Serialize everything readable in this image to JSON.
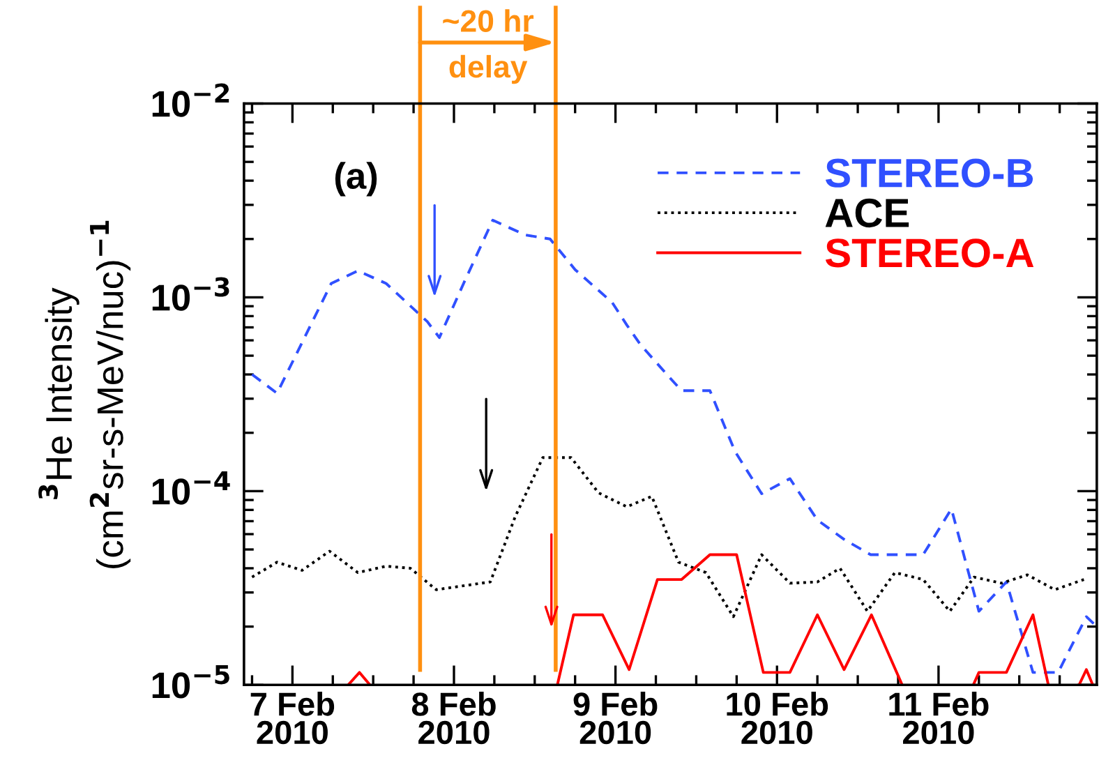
{
  "chart_data": {
    "type": "line",
    "ylabel": "$^{3}$He Intensity\n(cm$^{2}$sr-s-MeV/nuc)$^{−1}$",
    "log": "y",
    "ylim": [
      1e-05,
      0.01
    ],
    "yticks": [
      {
        "value": 1e-05,
        "label": "10$^{−5}$"
      },
      {
        "value": 0.0001,
        "label": "10$^{−4}$"
      },
      {
        "value": 0.001,
        "label": "10$^{−3}$"
      },
      {
        "value": 0.01,
        "label": "10$^{−2}$"
      }
    ],
    "xlim": [
      "2010-02-06T16:48",
      "2010-02-11T23:31"
    ],
    "xticks": [
      {
        "value": "2010-02-07",
        "label": "7 Feb\n2010"
      },
      {
        "value": "2010-02-08",
        "label": "8 Feb\n2010"
      },
      {
        "value": "2010-02-09",
        "label": "9 Feb\n2010"
      },
      {
        "value": "2010-02-10",
        "label": "10 Feb\n2010"
      },
      {
        "value": "2010-02-11",
        "label": "11 Feb\n2010"
      }
    ],
    "grid": false,
    "legend": "top right",
    "series": [
      {
        "name": "STEREO-B",
        "color": "#3050ff",
        "line_style": "dashed",
        "x": [
          "2010-02-06T18:00",
          "2010-02-06T21:43",
          "2010-02-07T05:46",
          "2010-02-07T09:43",
          "2010-02-07T13:55",
          "2010-02-07T20:02",
          "2010-02-07T21:50",
          "2010-02-08T01:26",
          "2010-02-08T05:46",
          "2010-02-08T10:34",
          "2010-02-08T14:17",
          "2010-02-08T18:00",
          "2010-02-08T23:31",
          "2010-02-09T01:41",
          "2010-02-09T03:43",
          "2010-02-09T07:55",
          "2010-02-09T09:50",
          "2010-02-09T14:02",
          "2010-02-09T17:46",
          "2010-02-09T21:43",
          "2010-02-10T01:55",
          "2010-02-10T06:00",
          "2010-02-10T10:05",
          "2010-02-10T13:55",
          "2010-02-10T21:43",
          "2010-02-11T01:55",
          "2010-02-11T06:00",
          "2010-02-11T10:05",
          "2010-02-11T14:02",
          "2010-02-11T17:46",
          "2010-02-11T21:58",
          "2010-02-11T23:31"
        ],
        "values": [
          0.0004,
          0.00032,
          0.00118,
          0.00137,
          0.00118,
          0.00075,
          0.00062,
          0.00118,
          0.0025,
          0.0021,
          0.002,
          0.00139,
          0.00094,
          0.00072,
          0.00057,
          0.00039,
          0.00033,
          0.00033,
          0.00016,
          9.7e-05,
          0.000116,
          7.1e-05,
          5.6e-05,
          4.7e-05,
          4.7e-05,
          8.1e-05,
          2.4e-05,
          3.4e-05,
          1.16e-05,
          1.16e-05,
          2.25e-05,
          2e-05
        ]
      },
      {
        "name": "ACE",
        "color": "#000000",
        "line_style": "dotted",
        "x": [
          "2010-02-06T18:00",
          "2010-02-06T21:43",
          "2010-02-07T01:26",
          "2010-02-07T05:31",
          "2010-02-07T09:43",
          "2010-02-07T13:55",
          "2010-02-07T17:31",
          "2010-02-07T21:22",
          "2010-02-08T05:24",
          "2010-02-08T09:07",
          "2010-02-08T13:12",
          "2010-02-08T17:24",
          "2010-02-08T21:29",
          "2010-02-09T01:41",
          "2010-02-09T05:24",
          "2010-02-09T09:22",
          "2010-02-09T13:26",
          "2010-02-09T17:31",
          "2010-02-09T21:43",
          "2010-02-10T01:55",
          "2010-02-10T06:00",
          "2010-02-10T09:22",
          "2010-02-10T13:26",
          "2010-02-10T17:31",
          "2010-02-10T21:43",
          "2010-02-11T01:41",
          "2010-02-11T05:17",
          "2010-02-11T09:22",
          "2010-02-11T13:12",
          "2010-02-11T17:17",
          "2010-02-11T21:36"
        ],
        "values": [
          3.6e-05,
          4.3e-05,
          3.9e-05,
          4.9e-05,
          3.8e-05,
          4.1e-05,
          4e-05,
          3.1e-05,
          3.4e-05,
          7.4e-05,
          0.000149,
          0.000149,
          9.8e-05,
          8.3e-05,
          9.4e-05,
          4.3e-05,
          3.8e-05,
          2.25e-05,
          4.7e-05,
          3.35e-05,
          3.4e-05,
          4e-05,
          2.4e-05,
          3.8e-05,
          3.5e-05,
          2.4e-05,
          3.6e-05,
          3.35e-05,
          3.7e-05,
          3.1e-05,
          3.5e-05
        ]
      },
      {
        "name": "STEREO-A",
        "color": "#ff0000",
        "line_style": "solid",
        "x": [
          "2010-02-07T08:17",
          "2010-02-07T09:58",
          "2010-02-07T11:31",
          "2010-02-08T00:00",
          "2010-02-08T15:22",
          "2010-02-08T17:46",
          "2010-02-08T22:05",
          "2010-02-09T02:02",
          "2010-02-09T06:14",
          "2010-02-09T09:50",
          "2010-02-09T14:02",
          "2010-02-09T18:00",
          "2010-02-09T21:58",
          "2010-02-10T01:55",
          "2010-02-10T06:00",
          "2010-02-10T09:58",
          "2010-02-10T14:02",
          "2010-02-10T18:36",
          "2010-02-11T00:00",
          "2010-02-11T05:10",
          "2010-02-11T06:00",
          "2010-02-11T10:05",
          "2010-02-11T14:02",
          "2010-02-11T16:19",
          "2010-02-11T19:12",
          "2010-02-11T20:53",
          "2010-02-11T21:58",
          "2010-02-11T22:55"
        ],
        "values": [
          1e-05,
          1.16e-05,
          1e-05,
          null,
          1e-05,
          2.3e-05,
          2.3e-05,
          1.2e-05,
          3.5e-05,
          3.5e-05,
          4.7e-05,
          4.7e-05,
          1.16e-05,
          1.16e-05,
          2.3e-05,
          1.2e-05,
          2.3e-05,
          1e-05,
          null,
          1e-05,
          1.16e-05,
          1.16e-05,
          2.3e-05,
          1e-05,
          null,
          1e-05,
          1.2e-05,
          1e-05
        ]
      }
    ],
    "ref_lines": [
      {
        "axis": "x",
        "value": "2010-02-07T18:58",
        "color": "#ff9010"
      },
      {
        "axis": "x",
        "value": "2010-02-08T15:07",
        "color": "#ff9010"
      }
    ],
    "annotations": [
      "(a)",
      "~20 hr\ndelay"
    ]
  }
}
